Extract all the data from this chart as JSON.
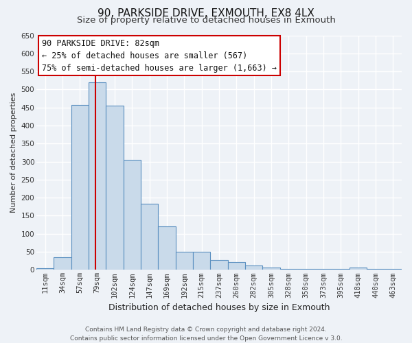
{
  "title": "90, PARKSIDE DRIVE, EXMOUTH, EX8 4LX",
  "subtitle": "Size of property relative to detached houses in Exmouth",
  "xlabel": "Distribution of detached houses by size in Exmouth",
  "ylabel": "Number of detached properties",
  "bin_labels": [
    "11sqm",
    "34sqm",
    "57sqm",
    "79sqm",
    "102sqm",
    "124sqm",
    "147sqm",
    "169sqm",
    "192sqm",
    "215sqm",
    "237sqm",
    "260sqm",
    "282sqm",
    "305sqm",
    "328sqm",
    "350sqm",
    "373sqm",
    "395sqm",
    "418sqm",
    "440sqm",
    "463sqm"
  ],
  "bar_values": [
    5,
    35,
    457,
    519,
    456,
    305,
    183,
    120,
    50,
    50,
    28,
    22,
    13,
    7,
    3,
    3,
    3,
    2,
    6,
    2,
    2
  ],
  "bar_color": "#c9daea",
  "bar_edge_color": "#5a8fc0",
  "vline_x_index": 3,
  "vline_color": "#cc0000",
  "annotation_title": "90 PARKSIDE DRIVE: 82sqm",
  "annotation_line1": "← 25% of detached houses are smaller (567)",
  "annotation_line2": "75% of semi-detached houses are larger (1,663) →",
  "annotation_box_color": "#ffffff",
  "annotation_box_edge": "#cc0000",
  "ylim": [
    0,
    650
  ],
  "yticks": [
    0,
    50,
    100,
    150,
    200,
    250,
    300,
    350,
    400,
    450,
    500,
    550,
    600,
    650
  ],
  "footer1": "Contains HM Land Registry data © Crown copyright and database right 2024.",
  "footer2": "Contains public sector information licensed under the Open Government Licence v 3.0.",
  "background_color": "#eef2f7",
  "grid_color": "#ffffff",
  "title_fontsize": 11,
  "subtitle_fontsize": 9.5,
  "xlabel_fontsize": 9,
  "ylabel_fontsize": 8,
  "tick_fontsize": 7.5,
  "annotation_fontsize": 8.5,
  "footer_fontsize": 6.5
}
